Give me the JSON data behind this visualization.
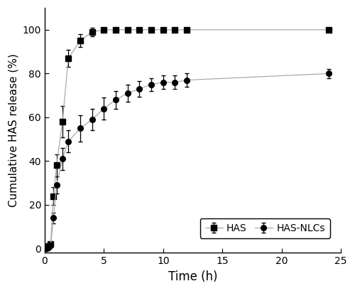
{
  "HAS_x": [
    0,
    0.17,
    0.33,
    0.5,
    0.75,
    1.0,
    1.5,
    2.0,
    3.0,
    4.0,
    5.0,
    6.0,
    7.0,
    8.0,
    9.0,
    10.0,
    11.0,
    12.0,
    24.0
  ],
  "HAS_y": [
    0,
    0.5,
    1.0,
    2,
    24,
    38,
    58,
    87,
    95,
    99,
    100,
    100,
    100,
    100,
    100,
    100,
    100,
    100,
    100
  ],
  "HAS_err": [
    0,
    0.5,
    0.5,
    0.5,
    4,
    5,
    7,
    4,
    3,
    2,
    1,
    1,
    1,
    1,
    1,
    1,
    1,
    1,
    1
  ],
  "NLC_x": [
    0,
    0.17,
    0.33,
    0.5,
    0.75,
    1.0,
    1.5,
    2.0,
    3.0,
    4.0,
    5.0,
    6.0,
    7.0,
    8.0,
    9.0,
    10.0,
    11.0,
    12.0,
    24.0
  ],
  "NLC_y": [
    0,
    0.5,
    1.0,
    1.5,
    14,
    29,
    41,
    49,
    55,
    59,
    64,
    68,
    71,
    73,
    75,
    76,
    76,
    77,
    80
  ],
  "NLC_err": [
    0,
    0.5,
    0.5,
    0.5,
    2.5,
    4,
    5,
    5,
    6,
    5,
    5,
    4,
    4,
    3.5,
    3,
    3,
    3,
    3,
    2
  ],
  "xlabel": "Time (h)",
  "ylabel": "Cumulative HAS release (%)",
  "xlim": [
    0,
    25
  ],
  "ylim": [
    -2,
    110
  ],
  "xticks": [
    0,
    5,
    10,
    15,
    20,
    25
  ],
  "yticks": [
    0,
    20,
    40,
    60,
    80,
    100
  ],
  "legend_labels": [
    "HAS",
    "HAS-NLCs"
  ],
  "line_color": "#aaaaaa",
  "marker_color": "#000000",
  "bg_color": "#ffffff"
}
